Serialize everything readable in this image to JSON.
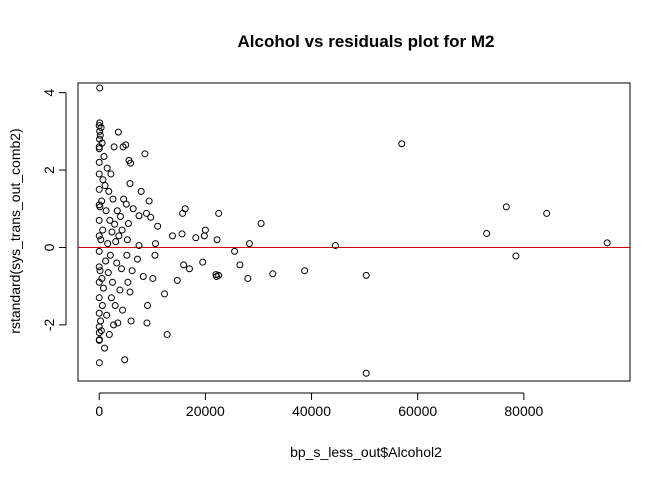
{
  "chart_data": {
    "type": "scatter",
    "title": "Alcohol vs residuals plot for M2",
    "xlabel": "bp_s_less_out$Alcohol2",
    "ylabel": "rstandard(sys_trans_out_comb2)",
    "xlim": [
      -4000,
      100000
    ],
    "ylim": [
      -3.45,
      4.25
    ],
    "x_ticks": [
      0,
      20000,
      40000,
      60000,
      80000
    ],
    "y_ticks": [
      -2,
      0,
      2,
      4
    ],
    "grid": false,
    "legend": "none",
    "reference_line": {
      "y": 0,
      "color": "#cc0000"
    },
    "marker": {
      "shape": "open-circle",
      "color": "#000000"
    },
    "points": [
      [
        57000,
        2.68
      ],
      [
        76700,
        1.05
      ],
      [
        84300,
        0.88
      ],
      [
        95700,
        0.12
      ],
      [
        73000,
        0.36
      ],
      [
        78500,
        -0.22
      ],
      [
        44500,
        0.05
      ],
      [
        50300,
        -0.72
      ],
      [
        50300,
        -3.25
      ],
      [
        38700,
        -0.6
      ],
      [
        32700,
        -0.68
      ],
      [
        30500,
        0.62
      ],
      [
        28300,
        0.1
      ],
      [
        28000,
        -0.8
      ],
      [
        26500,
        -0.45
      ],
      [
        25500,
        -0.1
      ],
      [
        22500,
        0.88
      ],
      [
        22500,
        -0.72
      ],
      [
        22100,
        -0.75
      ],
      [
        22200,
        0.2
      ],
      [
        22000,
        -0.7
      ],
      [
        20000,
        0.45
      ],
      [
        19800,
        0.3
      ],
      [
        19500,
        -0.38
      ],
      [
        18200,
        0.25
      ],
      [
        17000,
        -0.55
      ],
      [
        16200,
        1.0
      ],
      [
        15700,
        0.88
      ],
      [
        15900,
        -0.45
      ],
      [
        15600,
        0.35
      ],
      [
        14700,
        -0.85
      ],
      [
        13800,
        0.3
      ],
      [
        12800,
        -2.25
      ],
      [
        12300,
        -1.2
      ],
      [
        11000,
        0.55
      ],
      [
        10500,
        -0.2
      ],
      [
        10100,
        -0.8
      ],
      [
        10600,
        0.1
      ],
      [
        9400,
        1.2
      ],
      [
        9700,
        0.78
      ],
      [
        9100,
        -1.5
      ],
      [
        9000,
        -1.95
      ],
      [
        8600,
        2.42
      ],
      [
        8900,
        0.88
      ],
      [
        8300,
        -0.75
      ],
      [
        7900,
        1.45
      ],
      [
        7500,
        0.82
      ],
      [
        7500,
        0.05
      ],
      [
        7200,
        -0.3
      ],
      [
        6400,
        1.0
      ],
      [
        6000,
        -1.9
      ],
      [
        6200,
        -0.6
      ],
      [
        5900,
        2.18
      ],
      [
        5800,
        1.65
      ],
      [
        5800,
        -1.15
      ],
      [
        5600,
        2.25
      ],
      [
        5500,
        0.62
      ],
      [
        5300,
        0.2
      ],
      [
        5400,
        -0.9
      ],
      [
        5200,
        -0.2
      ],
      [
        5100,
        1.12
      ],
      [
        5000,
        2.65
      ],
      [
        4800,
        -2.9
      ],
      [
        4600,
        1.25
      ],
      [
        4500,
        2.6
      ],
      [
        4400,
        -1.62
      ],
      [
        4300,
        0.45
      ],
      [
        4200,
        -0.55
      ],
      [
        4000,
        0.8
      ],
      [
        3900,
        -1.1
      ],
      [
        3700,
        0.3
      ],
      [
        3600,
        2.98
      ],
      [
        3500,
        -1.95
      ],
      [
        3400,
        0.95
      ],
      [
        3300,
        -0.4
      ],
      [
        3100,
        0.15
      ],
      [
        3000,
        -1.5
      ],
      [
        2900,
        0.6
      ],
      [
        2800,
        2.6
      ],
      [
        2700,
        -2.0
      ],
      [
        2600,
        1.25
      ],
      [
        2500,
        -0.9
      ],
      [
        2400,
        0.4
      ],
      [
        2300,
        -1.3
      ],
      [
        2200,
        1.9
      ],
      [
        2100,
        -0.2
      ],
      [
        2000,
        0.7
      ],
      [
        1900,
        -2.25
      ],
      [
        1800,
        1.45
      ],
      [
        1700,
        -0.65
      ],
      [
        1600,
        0.1
      ],
      [
        1500,
        2.05
      ],
      [
        1400,
        -1.75
      ],
      [
        1300,
        0.95
      ],
      [
        1200,
        -0.35
      ],
      [
        1100,
        1.6
      ],
      [
        1000,
        -2.6
      ],
      [
        900,
        2.35
      ],
      [
        800,
        -1.05
      ],
      [
        700,
        1.75
      ],
      [
        650,
        0.45
      ],
      [
        600,
        -1.5
      ],
      [
        550,
        2.7
      ],
      [
        500,
        -0.8
      ],
      [
        450,
        1.2
      ],
      [
        400,
        -2.15
      ],
      [
        350,
        3.1
      ],
      [
        300,
        0.2
      ],
      [
        250,
        -1.9
      ],
      [
        200,
        2.9
      ],
      [
        150,
        -0.6
      ],
      [
        120,
        1.05
      ],
      [
        100,
        4.12
      ],
      [
        90,
        3.22
      ],
      [
        80,
        3.0
      ],
      [
        60,
        2.8
      ],
      [
        40,
        -2.38
      ],
      [
        30,
        -2.98
      ],
      [
        20,
        -2.2
      ],
      [
        10,
        2.55
      ],
      [
        0,
        2.6
      ],
      [
        0,
        2.2
      ],
      [
        0,
        1.9
      ],
      [
        0,
        1.5
      ],
      [
        0,
        1.1
      ],
      [
        0,
        0.7
      ],
      [
        0,
        0.3
      ],
      [
        0,
        -0.1
      ],
      [
        0,
        -0.5
      ],
      [
        0,
        -0.9
      ],
      [
        0,
        -1.3
      ],
      [
        0,
        -1.7
      ],
      [
        0,
        -2.05
      ],
      [
        0,
        -2.4
      ],
      [
        0,
        3.15
      ]
    ]
  }
}
